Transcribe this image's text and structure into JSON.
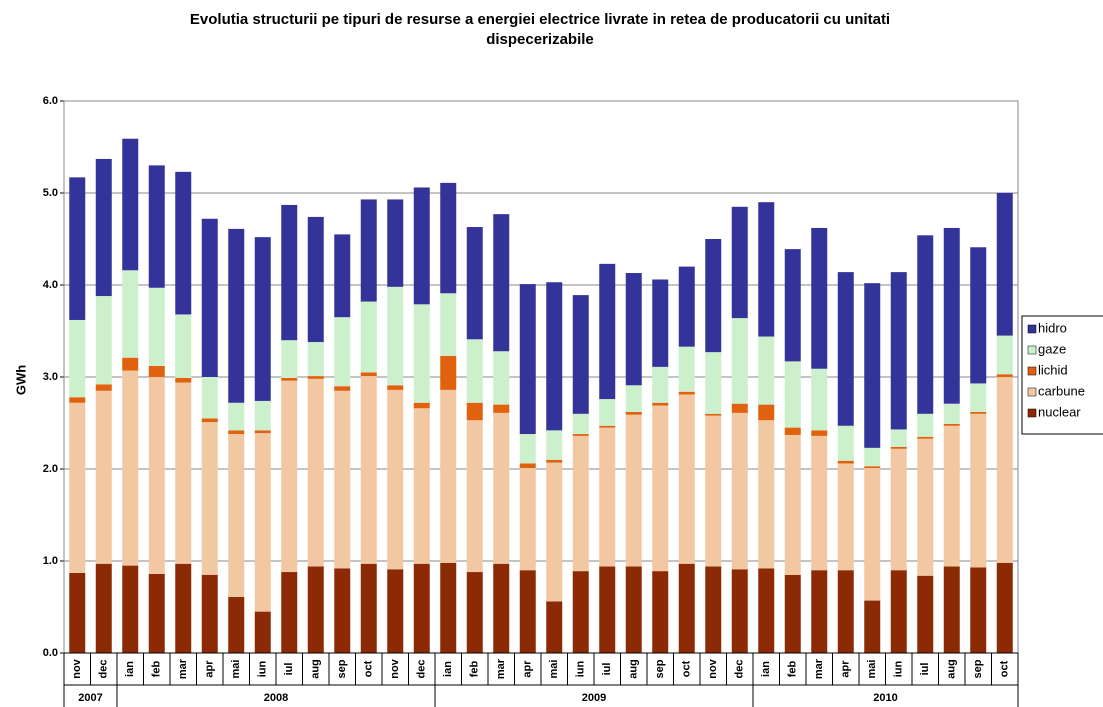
{
  "chart_data": {
    "type": "stacked_bar",
    "title": "Evolutia structurii pe tipuri de resurse a energiei electrice livrate in retea de producatorii cu unitati dispecerizabile",
    "y_label": "GWh",
    "categories": [
      "nov",
      "dec",
      "ian",
      "feb",
      "mar",
      "apr",
      "mai",
      "iun",
      "iul",
      "aug",
      "sep",
      "oct",
      "nov",
      "dec",
      "ian",
      "feb",
      "mar",
      "apr",
      "mai",
      "iun",
      "iul",
      "aug",
      "sep",
      "oct",
      "nov",
      "dec",
      "ian",
      "feb",
      "mar",
      "apr",
      "mai",
      "iun",
      "iul",
      "aug",
      "sep",
      "oct"
    ],
    "years": [
      "2007",
      "2008",
      "2009",
      "2010"
    ],
    "series": [
      {
        "name": "nuclear",
        "color": "#8b2a05",
        "values": [
          0.87,
          0.97,
          0.95,
          0.86,
          0.97,
          0.85,
          0.61,
          0.45,
          0.88,
          0.94,
          0.92,
          0.97,
          0.91,
          0.97,
          0.98,
          0.88,
          0.97,
          0.9,
          0.56,
          0.89,
          0.94,
          0.94,
          0.89,
          0.97,
          0.94,
          0.91,
          0.92,
          0.85,
          0.9,
          0.9,
          0.57,
          0.9,
          0.84,
          0.94,
          0.93,
          0.98
        ]
      },
      {
        "name": "carbune",
        "color": "#f2c8a2",
        "values": [
          1.85,
          1.88,
          2.12,
          2.14,
          1.97,
          1.66,
          1.77,
          1.94,
          2.08,
          2.04,
          1.93,
          2.04,
          1.95,
          1.69,
          1.88,
          1.65,
          1.64,
          1.11,
          1.51,
          1.47,
          1.51,
          1.65,
          1.8,
          1.84,
          1.64,
          1.7,
          1.61,
          1.52,
          1.46,
          1.16,
          1.44,
          1.32,
          1.49,
          1.53,
          1.67,
          2.02
        ]
      },
      {
        "name": "lichid",
        "color": "#e0620f",
        "values": [
          0.06,
          0.07,
          0.14,
          0.12,
          0.05,
          0.04,
          0.04,
          0.03,
          0.03,
          0.03,
          0.05,
          0.04,
          0.05,
          0.06,
          0.37,
          0.19,
          0.09,
          0.05,
          0.03,
          0.02,
          0.02,
          0.03,
          0.03,
          0.03,
          0.02,
          0.1,
          0.17,
          0.08,
          0.06,
          0.03,
          0.02,
          0.02,
          0.02,
          0.02,
          0.02,
          0.03
        ]
      },
      {
        "name": "gaze",
        "color": "#ccf0cc",
        "values": [
          0.84,
          0.96,
          0.95,
          0.85,
          0.69,
          0.45,
          0.3,
          0.32,
          0.41,
          0.37,
          0.75,
          0.77,
          1.07,
          1.07,
          0.68,
          0.69,
          0.58,
          0.32,
          0.32,
          0.22,
          0.29,
          0.29,
          0.39,
          0.49,
          0.67,
          0.93,
          0.74,
          0.72,
          0.67,
          0.38,
          0.2,
          0.19,
          0.25,
          0.22,
          0.31,
          0.42
        ]
      },
      {
        "name": "hidro",
        "color": "#333399",
        "values": [
          1.55,
          1.49,
          1.43,
          1.33,
          1.55,
          1.72,
          1.89,
          1.78,
          1.47,
          1.36,
          0.9,
          1.11,
          0.95,
          1.27,
          1.2,
          1.22,
          1.49,
          1.63,
          1.61,
          1.29,
          1.47,
          1.22,
          0.95,
          0.87,
          1.23,
          1.21,
          1.46,
          1.22,
          1.53,
          1.67,
          1.79,
          1.71,
          1.94,
          1.91,
          1.48,
          1.55
        ]
      }
    ],
    "ylim": [
      0,
      6
    ],
    "yticks": [
      {
        "value": 0,
        "label": "0.0"
      },
      {
        "value": 1,
        "label": "1.0"
      },
      {
        "value": 2,
        "label": "2.0"
      },
      {
        "value": 3,
        "label": "3.0"
      },
      {
        "value": 4,
        "label": "4.0"
      },
      {
        "value": 5,
        "label": "5.0"
      },
      {
        "value": 6,
        "label": "6.0"
      }
    ],
    "grid": true
  }
}
